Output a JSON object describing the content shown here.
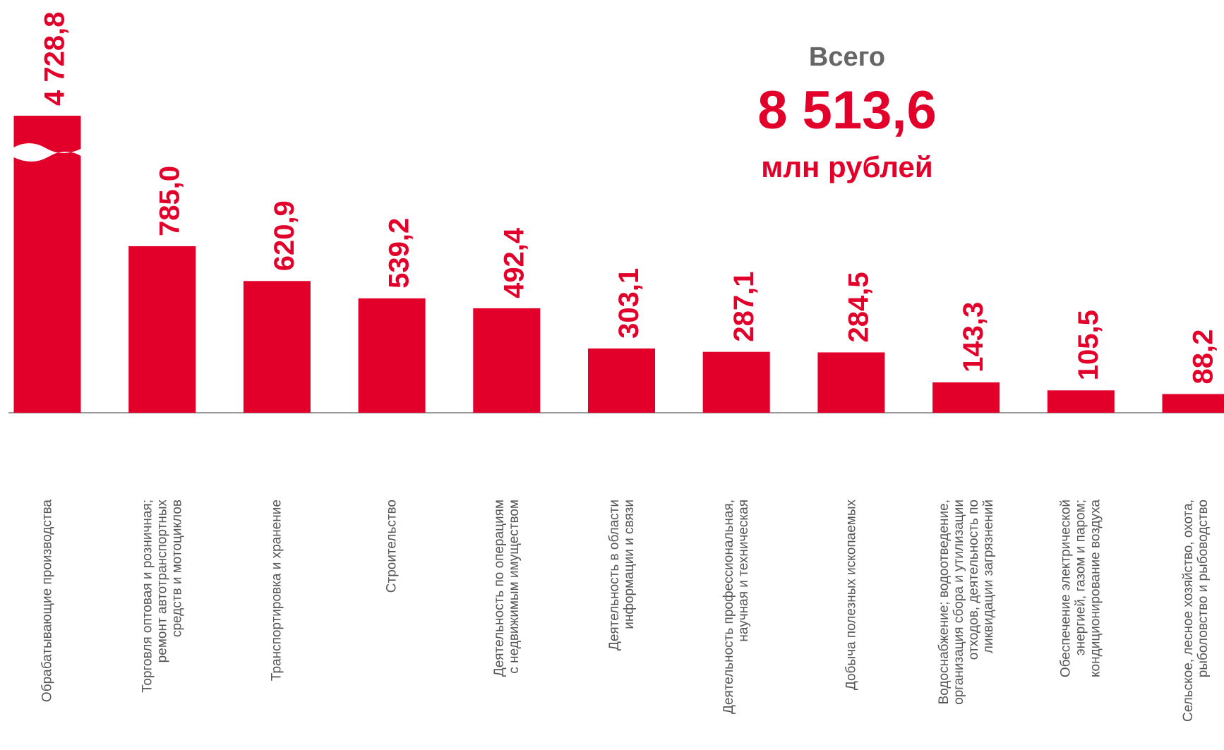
{
  "chart_data": {
    "type": "bar",
    "categories": [
      "Обрабатывающие производства",
      "Торговля оптовая и розничная;\nремонт автотранспортных\nсредств и мотоциклов",
      "Транспортировка и хранение",
      "Строительство",
      "Деятельность по операциям\nс недвижимым имуществом",
      "Деятельность в области\nинформации и связи",
      "Деятельность профессиональная,\nнаучная и техническая",
      "Добыча полезных ископаемых",
      "Водоснабжение; водоотведение,\nорганизация сбора и утилизации\nотходов, деятельность по\nликвидации загрязнений",
      "Обеспечение электрической\nэнергией, газом и паром;\nкондиционирование воздуха",
      "Сельское, лесное хозяйство, охота,\nрыболовство и  рыбоводство"
    ],
    "values": [
      4728.8,
      785.0,
      620.9,
      539.2,
      492.4,
      303.1,
      287.1,
      284.5,
      143.3,
      105.5,
      88.2
    ],
    "value_labels": [
      "4 728,8",
      "785,0",
      "620,9",
      "539,2",
      "492,4",
      "303,1",
      "287,1",
      "284,5",
      "143,3",
      "105,5",
      "88,2"
    ],
    "color": "#e2002a",
    "ylim": [
      0,
      1400
    ],
    "axis_break": true,
    "total": {
      "label": "Всего",
      "value": "8 513,6",
      "unit": "млн рублей"
    }
  }
}
